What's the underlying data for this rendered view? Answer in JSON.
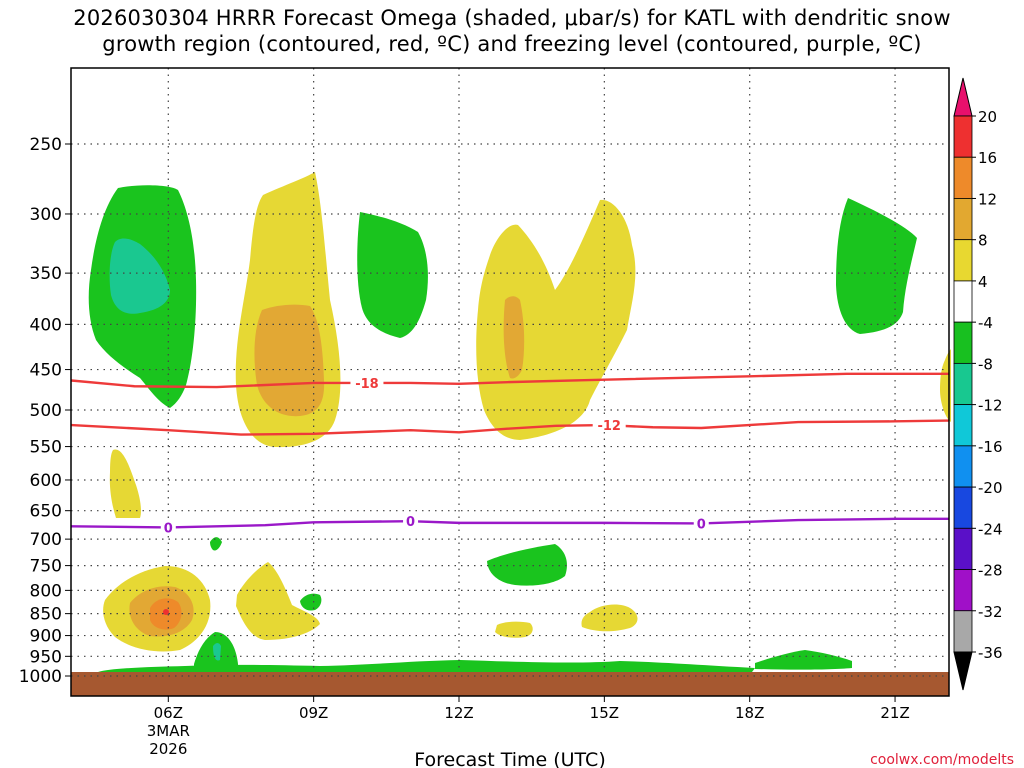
{
  "chart_data": {
    "type": "contour",
    "title_line1": "2026030304 HRRR Forecast Omega (shaded, μbar/s) for KATL with dendritic snow",
    "title_line2": "growth region (contoured, red, ºC) and freezing level (contoured, purple, ºC)",
    "xlabel": "Forecast Time (UTC)",
    "credit": "coolwx.com/modelts",
    "x_range_hours": [
      4,
      22.3
    ],
    "x_ticks": [
      {
        "hour": 6,
        "label": "06Z",
        "sub1": "3MAR",
        "sub2": "2026"
      },
      {
        "hour": 9,
        "label": "09Z"
      },
      {
        "hour": 12,
        "label": "12Z"
      },
      {
        "hour": 15,
        "label": "15Z"
      },
      {
        "hour": 18,
        "label": "18Z"
      },
      {
        "hour": 21,
        "label": "21Z"
      }
    ],
    "y_ticks": [
      250,
      300,
      350,
      400,
      450,
      500,
      550,
      600,
      650,
      700,
      750,
      800,
      850,
      900,
      950,
      1000
    ],
    "y_range_hpa": [
      200,
      1000
    ],
    "y_scale": "log",
    "grid": true,
    "colorbar": {
      "labels": [
        "20",
        "16",
        "12",
        "8",
        "4",
        "-4",
        "-8",
        "-12",
        "-16",
        "-20",
        "-24",
        "-28",
        "-32",
        "-36"
      ],
      "colors": [
        "#e8106c",
        "#ee3030",
        "#ee8a2a",
        "#e2a830",
        "#e8d830",
        "#ffffff",
        "#18c020",
        "#18c890",
        "#10c8d8",
        "#1090f0",
        "#1848e0",
        "#5a10c8",
        "#a010c8",
        "#a8a8a8",
        "#000000"
      ]
    },
    "contours": [
      {
        "name": "-18",
        "color": "#ee3a3a",
        "points": [
          [
            4.0,
            463
          ],
          [
            5.3,
            470
          ],
          [
            7.0,
            471
          ],
          [
            9.0,
            466
          ],
          [
            11.0,
            466
          ],
          [
            12.0,
            467
          ],
          [
            13.0,
            465
          ],
          [
            15.0,
            462
          ],
          [
            18.0,
            458
          ],
          [
            20.0,
            455
          ],
          [
            22.3,
            455
          ]
        ],
        "labels": [
          {
            "text": "-18",
            "x": 10.1,
            "y": 466
          }
        ]
      },
      {
        "name": "-12",
        "color": "#ee3a3a",
        "points": [
          [
            4.0,
            520
          ],
          [
            6.0,
            527
          ],
          [
            7.5,
            533
          ],
          [
            9.0,
            532
          ],
          [
            11.0,
            527
          ],
          [
            12.0,
            530
          ],
          [
            13.0,
            525
          ],
          [
            14.0,
            521
          ],
          [
            15.0,
            520
          ],
          [
            16.0,
            523
          ],
          [
            17.0,
            524
          ],
          [
            19.0,
            516
          ],
          [
            21.0,
            515
          ],
          [
            22.3,
            514
          ]
        ],
        "labels": [
          {
            "text": "-12",
            "x": 15.1,
            "y": 520
          }
        ]
      },
      {
        "name": "0",
        "color": "#9a18c8",
        "points": [
          [
            4.0,
            677
          ],
          [
            6.0,
            679
          ],
          [
            8.0,
            675
          ],
          [
            9.0,
            670
          ],
          [
            11.0,
            668
          ],
          [
            12.0,
            671
          ],
          [
            15.0,
            671
          ],
          [
            17.0,
            672
          ],
          [
            19.0,
            666
          ],
          [
            21.0,
            664
          ],
          [
            22.3,
            664
          ]
        ],
        "labels": [
          {
            "text": "0",
            "x": 6.0,
            "y": 679
          },
          {
            "text": "0",
            "x": 11.0,
            "y": 668
          },
          {
            "text": "0",
            "x": 17.0,
            "y": 672
          }
        ]
      }
    ]
  }
}
